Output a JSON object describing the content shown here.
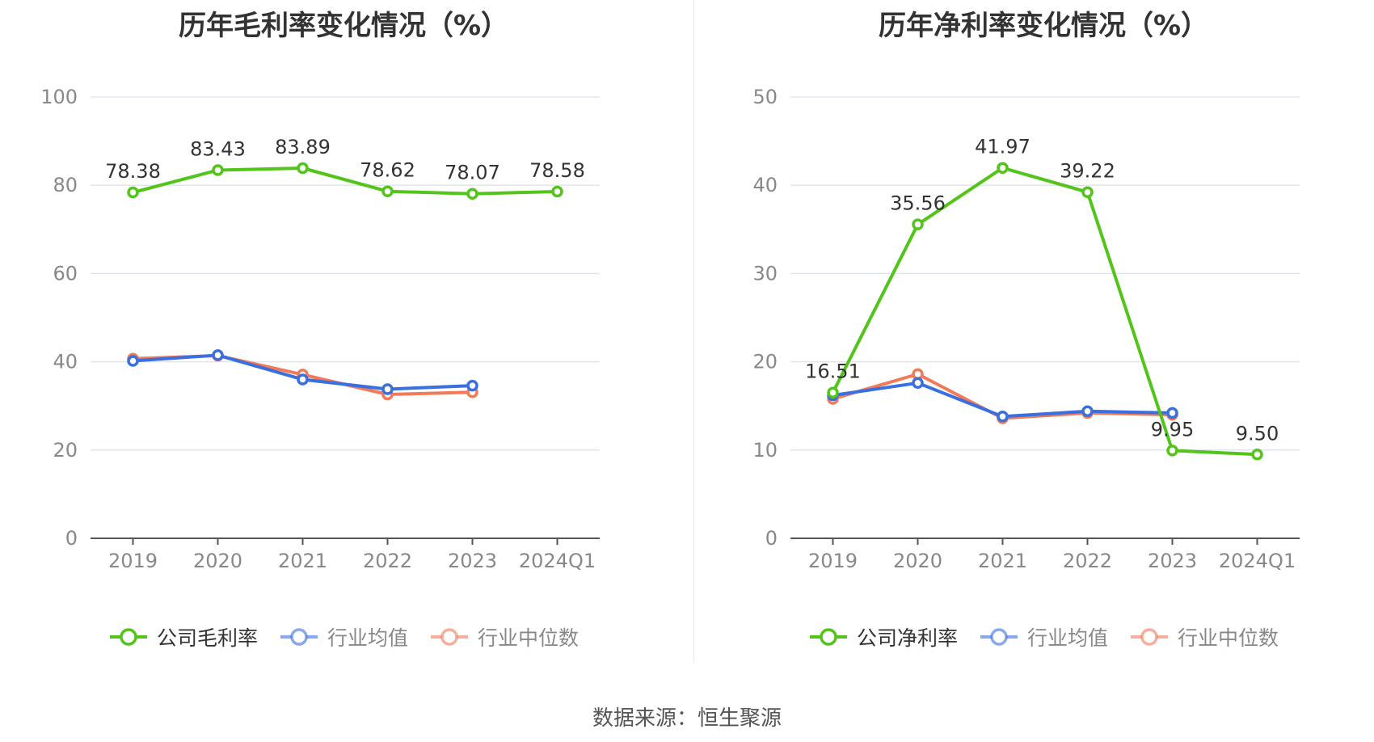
{
  "source_text": "数据来源：恒生聚源",
  "chart_data": [
    {
      "type": "line",
      "title": "历年毛利率变化情况（%）",
      "categories": [
        "2019",
        "2020",
        "2021",
        "2022",
        "2023",
        "2024Q1"
      ],
      "ylim": [
        0,
        100
      ],
      "yticks": [
        0,
        20,
        40,
        60,
        80,
        100
      ],
      "grid": true,
      "legend_position": "bottom",
      "series": [
        {
          "name": "公司毛利率",
          "color": "#52c41a",
          "values": [
            78.38,
            83.43,
            83.89,
            78.62,
            78.07,
            78.58
          ],
          "labels": [
            "78.38",
            "83.43",
            "83.89",
            "78.62",
            "78.07",
            "78.58"
          ]
        },
        {
          "name": "行业均值",
          "color": "#3a6fe0",
          "values": [
            40.2,
            41.5,
            36.0,
            33.8,
            34.6,
            null
          ]
        },
        {
          "name": "行业中位数",
          "color": "#f07a5a",
          "values": [
            40.7,
            41.4,
            37.1,
            32.6,
            33.1,
            null
          ]
        }
      ]
    },
    {
      "type": "line",
      "title": "历年净利率变化情况（%）",
      "categories": [
        "2019",
        "2020",
        "2021",
        "2022",
        "2023",
        "2024Q1"
      ],
      "ylim": [
        0,
        50
      ],
      "yticks": [
        0,
        10,
        20,
        30,
        40,
        50
      ],
      "grid": true,
      "legend_position": "bottom",
      "series": [
        {
          "name": "公司净利率",
          "color": "#52c41a",
          "values": [
            16.51,
            35.56,
            41.97,
            39.22,
            9.95,
            9.5
          ],
          "labels": [
            "16.51",
            "35.56",
            "41.97",
            "39.22",
            "9.95",
            "9.50"
          ]
        },
        {
          "name": "行业均值",
          "color": "#3a6fe0",
          "values": [
            16.2,
            17.6,
            13.8,
            14.4,
            14.2,
            null
          ]
        },
        {
          "name": "行业中位数",
          "color": "#f07a5a",
          "values": [
            15.8,
            18.6,
            13.6,
            14.2,
            14.0,
            null
          ]
        }
      ]
    }
  ]
}
